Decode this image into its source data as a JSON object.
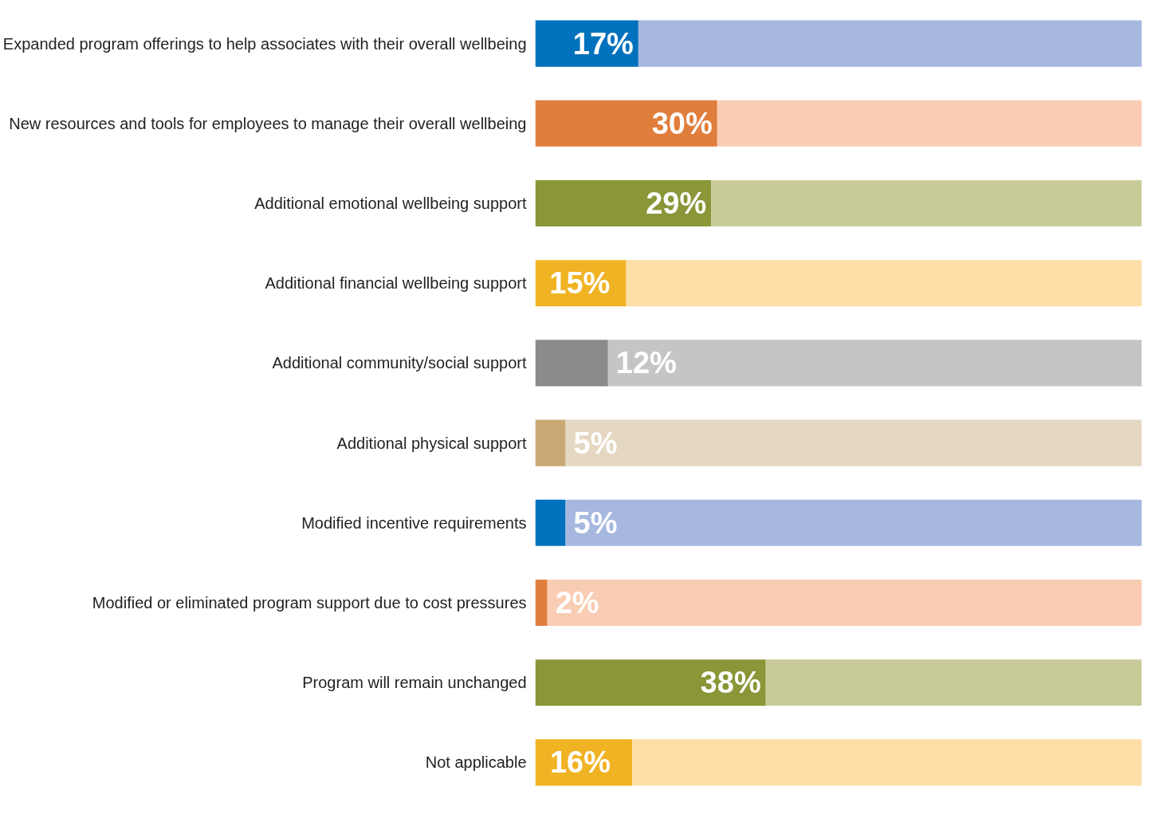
{
  "chart_data": {
    "type": "bar",
    "orientation": "horizontal",
    "stacked": true,
    "categories": [
      "Expanded program offerings to help associates with their overall wellbeing",
      "New resources and tools for employees to manage their overall wellbeing",
      "Additional emotional wellbeing support",
      "Additional financial wellbeing support",
      "Additional community/social support",
      "Additional physical support",
      "Modified incentive requirements",
      "Modified or eliminated program support due to cost pressures",
      "Program will remain unchanged",
      "Not applicable"
    ],
    "series": [
      {
        "values": [
          17,
          30,
          29,
          15,
          12,
          5,
          5,
          2,
          38,
          16
        ],
        "colors": [
          "#0071bc",
          "#e07e3c",
          "#8a9637",
          "#f0b323",
          "#8a8c8c",
          "#c8a974",
          "#0071bc",
          "#e07e3c",
          "#8a9637",
          "#f0b323"
        ],
        "value_labels": [
          "17%",
          "30%",
          "29%",
          "15%",
          "12%",
          "5%",
          "5%",
          "2%",
          "38%",
          "16%"
        ]
      },
      {
        "values": [
          83,
          70,
          71,
          85,
          88,
          95,
          95,
          98,
          62,
          84
        ],
        "colors": [
          "#a6b8e0",
          "#f9cdb3",
          "#c9cb9a",
          "#fddea6",
          "#c4c5c4",
          "#e5d8c2",
          "#a6b8e0",
          "#f9cdb3",
          "#c9cb9a",
          "#fddea6"
        ]
      }
    ],
    "xlim": [
      0,
      100
    ],
    "tick_labels": "y",
    "grid": false
  }
}
